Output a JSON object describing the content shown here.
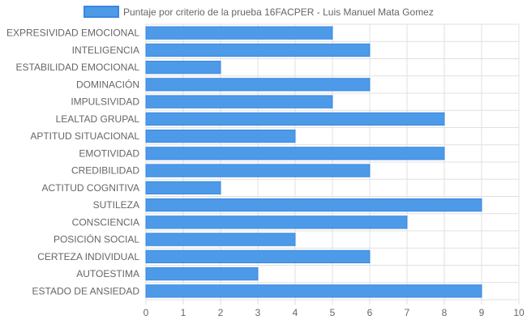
{
  "chart_data": {
    "type": "bar",
    "orientation": "horizontal",
    "categories": [
      "EXPRESIVIDAD EMOCIONAL",
      "INTELIGENCIA",
      "ESTABILIDAD EMOCIONAL",
      "DOMINACIÓN",
      "IMPULSIVIDAD",
      "LEALTAD GRUPAL",
      "APTITUD SITUACIONAL",
      "EMOTIVIDAD",
      "CREDIBILIDAD",
      "ACTITUD COGNITIVA",
      "SUTILEZA",
      "CONSCIENCIA",
      "POSICIÓN SOCIAL",
      "CERTEZA INDIVIDUAL",
      "AUTOESTIMA",
      "ESTADO DE ANSIEDAD"
    ],
    "series": [
      {
        "name": "Puntaje por criterio de la prueba 16FACPER - Luis Manuel Mata Gomez",
        "values": [
          5,
          6,
          2,
          6,
          5,
          8,
          4,
          8,
          6,
          2,
          9,
          7,
          4,
          6,
          3,
          9
        ]
      }
    ],
    "xlim": [
      0,
      10
    ],
    "xticks": [
      "0",
      "1",
      "2",
      "3",
      "4",
      "5",
      "6",
      "7",
      "8",
      "9",
      "10"
    ],
    "grid": true,
    "legend_position": "top",
    "colors": {
      "bar_fill": "#4d9be8",
      "bar_border": "#3a86e0",
      "grid": "#e0e0e0",
      "axis_text": "#666666"
    }
  }
}
